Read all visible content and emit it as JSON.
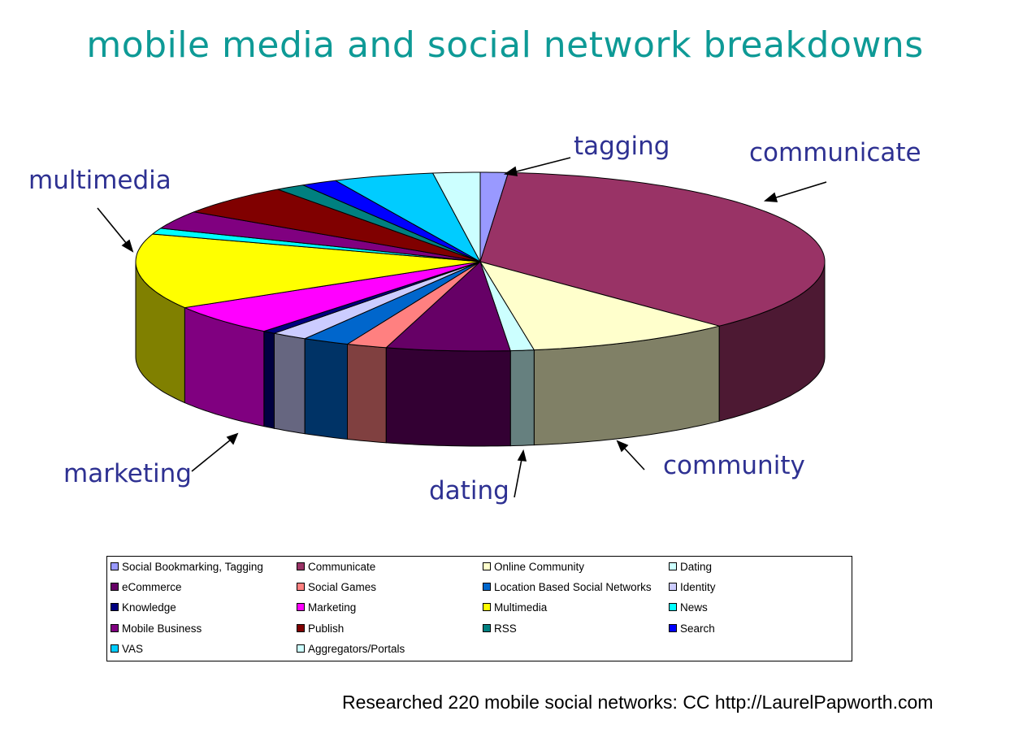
{
  "title": "mobile media and social network breakdowns",
  "footer": "Researched 220 mobile social networks: CC http://LaurelPapworth.com",
  "callouts": {
    "tagging": "tagging",
    "communicate": "communicate",
    "multimedia": "multimedia",
    "marketing": "marketing",
    "dating": "dating",
    "community": "community"
  },
  "chart_data": {
    "type": "pie",
    "style": "3d-pie",
    "title": "mobile media and social network breakdowns",
    "subtitle": "Researched 220 mobile social networks: CC http://LaurelPapworth.com",
    "legend_position": "bottom",
    "unit": "percent (estimated from slice angles)",
    "categories": [
      "Social Bookmarking, Tagging",
      "Communicate",
      "Online Community",
      "Dating",
      "eCommerce",
      "Social Games",
      "Location Based Social Networks",
      "Identity",
      "Knowledge",
      "Marketing",
      "Multimedia",
      "News",
      "Mobile Business",
      "Publish",
      "RSS",
      "Search",
      "VAS",
      "Aggregators/Portals"
    ],
    "values": [
      1.3,
      36.5,
      9.7,
      1.1,
      5.8,
      1.9,
      2.2,
      1.7,
      0.6,
      5.6,
      13.6,
      1.1,
      3.3,
      5.6,
      1.4,
      1.7,
      4.7,
      2.2
    ],
    "colors": [
      "#9999ff",
      "#993366",
      "#ffffcc",
      "#ccffff",
      "#660066",
      "#ff8080",
      "#0066cc",
      "#ccccff",
      "#000080",
      "#ff00ff",
      "#ffff00",
      "#00ffff",
      "#800080",
      "#800000",
      "#008080",
      "#0000ff",
      "#00ccff",
      "#ccffff"
    ],
    "side_colors": [
      "#4d4d80",
      "#4d1933",
      "#808066",
      "#66807f",
      "#330033",
      "#804040",
      "#003366",
      "#666680",
      "#000040",
      "#800080",
      "#808000",
      "#008080",
      "#400040",
      "#400000",
      "#004040",
      "#000080",
      "#006680",
      "#668080"
    ],
    "annotations": [
      {
        "text": "tagging",
        "target": "Social Bookmarking, Tagging"
      },
      {
        "text": "communicate",
        "target": "Communicate"
      },
      {
        "text": "community",
        "target": "Online Community"
      },
      {
        "text": "dating",
        "target": "Dating"
      },
      {
        "text": "marketing",
        "target": "Marketing"
      },
      {
        "text": "multimedia",
        "target": "Multimedia"
      }
    ]
  },
  "legend": {
    "items": [
      {
        "label": "Social Bookmarking, Tagging",
        "color": "#9999ff"
      },
      {
        "label": "Communicate",
        "color": "#993366"
      },
      {
        "label": "Online Community",
        "color": "#ffffcc"
      },
      {
        "label": "Dating",
        "color": "#ccffff"
      },
      {
        "label": "eCommerce",
        "color": "#660066"
      },
      {
        "label": "Social Games",
        "color": "#ff8080"
      },
      {
        "label": "Location Based Social Networks",
        "color": "#0066cc"
      },
      {
        "label": "Identity",
        "color": "#ccccff"
      },
      {
        "label": "Knowledge",
        "color": "#000080"
      },
      {
        "label": "Marketing",
        "color": "#ff00ff"
      },
      {
        "label": "Multimedia",
        "color": "#ffff00"
      },
      {
        "label": "News",
        "color": "#00ffff"
      },
      {
        "label": "Mobile Business",
        "color": "#800080"
      },
      {
        "label": "Publish",
        "color": "#800000"
      },
      {
        "label": "RSS",
        "color": "#008080"
      },
      {
        "label": "Search",
        "color": "#0000ff"
      },
      {
        "label": "VAS",
        "color": "#00ccff"
      },
      {
        "label": "Aggregators/Portals",
        "color": "#ccffff"
      }
    ]
  }
}
